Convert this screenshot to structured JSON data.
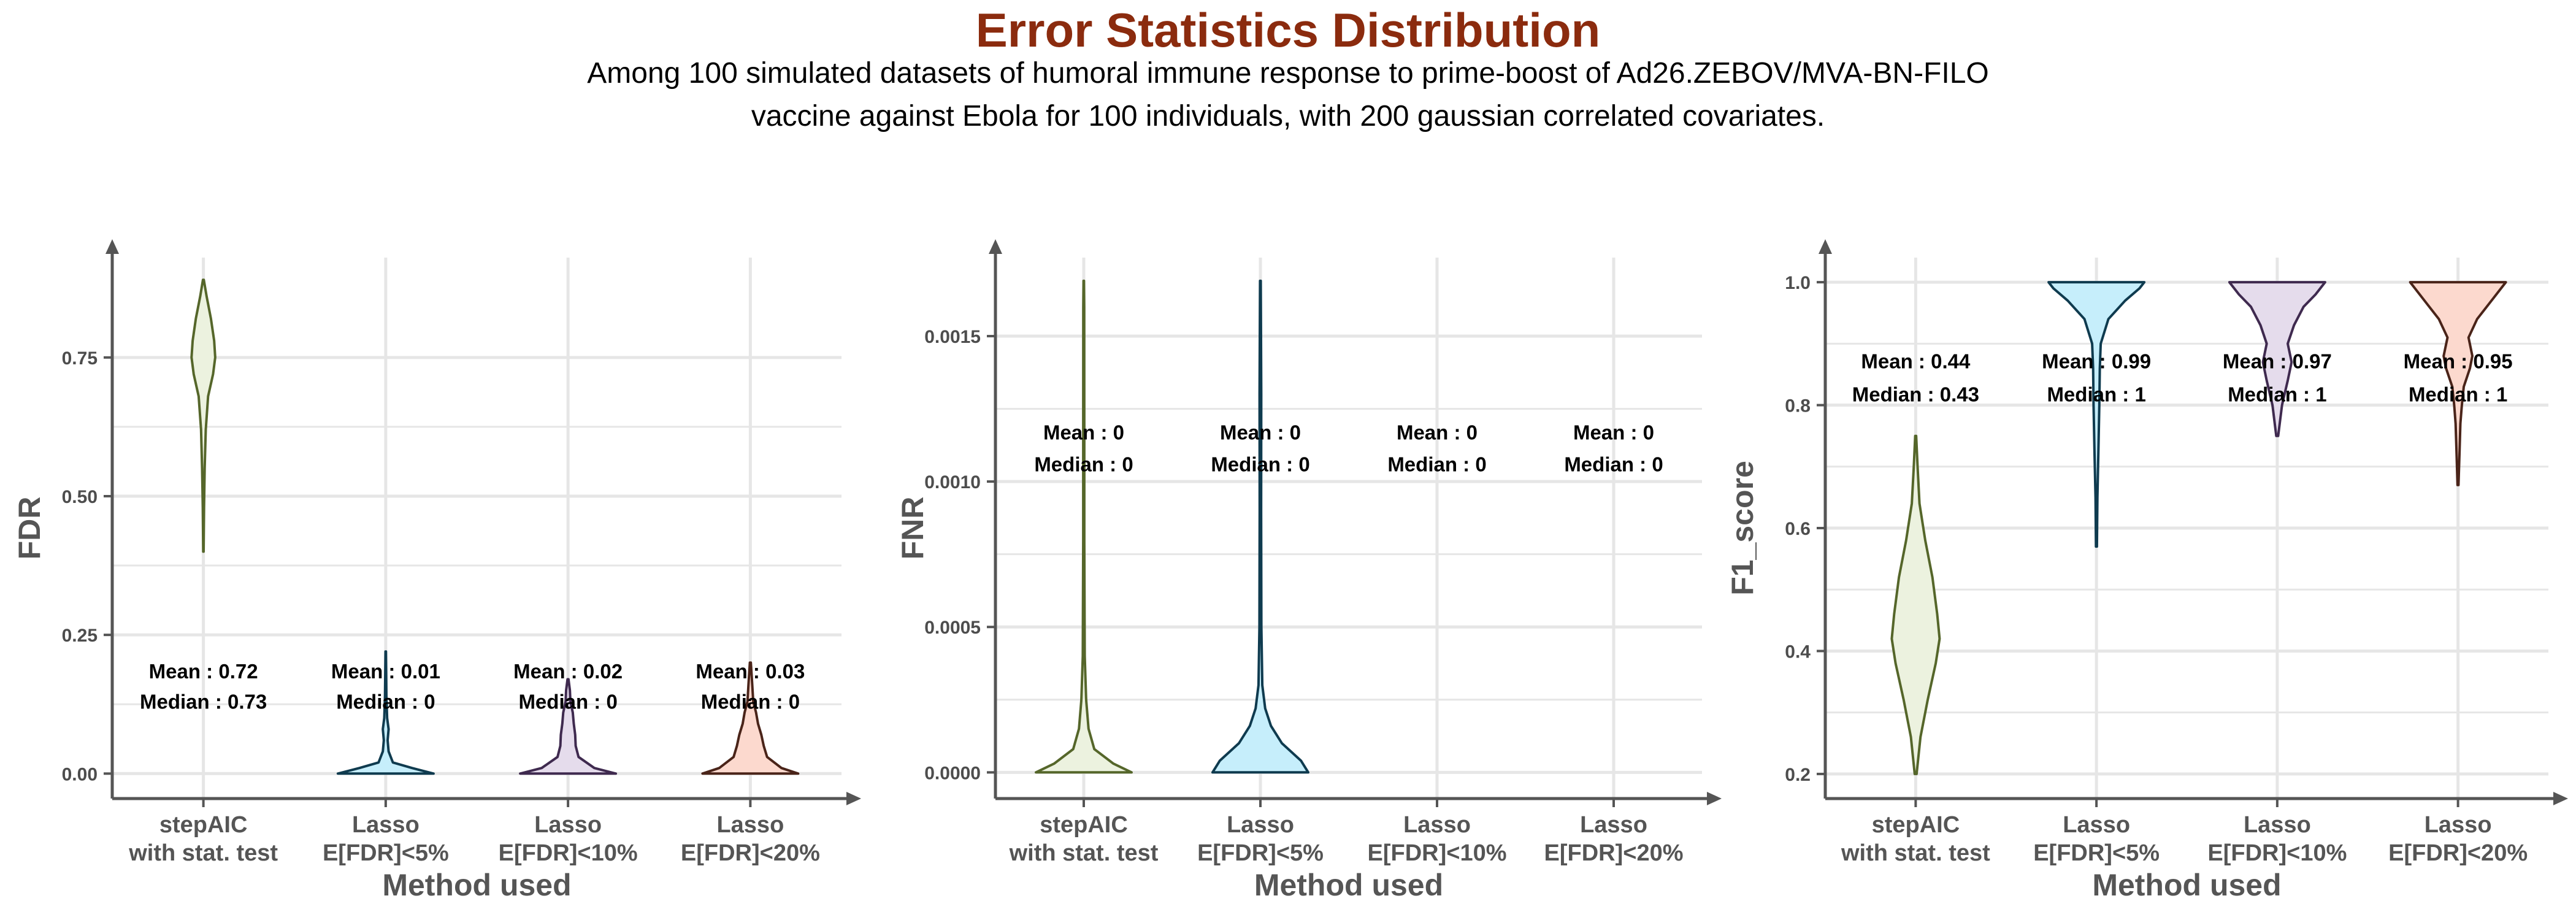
{
  "title": "Error Statistics Distribution",
  "subtitle_lines": [
    "Among 100 simulated datasets of humoral immune response to prime-boost of Ad26.ZEBOV/MVA-BN-FILO",
    "vaccine against Ebola for 100 individuals, with 200 gaussian correlated covariates."
  ],
  "colors": {
    "title": "#8b2b0e",
    "axis": "#555555",
    "grid": "#e6e6e6",
    "method_fills": [
      "#ecf2df",
      "#c6eefb",
      "#e5dcec",
      "#fcd9ce"
    ],
    "method_lines": [
      "#55662a",
      "#0f3b4f",
      "#3f2a4f",
      "#4a2419"
    ]
  },
  "chart_data": [
    {
      "type": "violin",
      "xlabel": "Method used",
      "ylabel": "FDR",
      "categories": [
        "stepAIC\nwith stat. test",
        "Lasso\nE[FDR]<5%",
        "Lasso\nE[FDR]<10%",
        "Lasso\nE[FDR]<20%"
      ],
      "ylim": [
        -0.045,
        0.93
      ],
      "yticks": [
        0.0,
        0.25,
        0.5,
        0.75
      ],
      "ytick_labels": [
        "0.00",
        "0.25",
        "0.50",
        "0.75"
      ],
      "grid": true,
      "annotation_y": [
        0.185,
        0.13
      ],
      "series": [
        {
          "mean_label": "Mean : 0.72",
          "median_label": "Median : 0.73",
          "density": [
            [
              0.4,
              0.01
            ],
            [
              0.48,
              0.03
            ],
            [
              0.55,
              0.06
            ],
            [
              0.62,
              0.11
            ],
            [
              0.68,
              0.22
            ],
            [
              0.72,
              0.45
            ],
            [
              0.75,
              0.55
            ],
            [
              0.78,
              0.5
            ],
            [
              0.82,
              0.35
            ],
            [
              0.86,
              0.15
            ],
            [
              0.89,
              0.02
            ]
          ]
        },
        {
          "mean_label": "Mean : 0.01",
          "median_label": "Median : 0",
          "density": [
            [
              0.0,
              1.0
            ],
            [
              0.01,
              0.55
            ],
            [
              0.02,
              0.15
            ],
            [
              0.04,
              0.06
            ],
            [
              0.06,
              0.04
            ],
            [
              0.08,
              0.06
            ],
            [
              0.1,
              0.03
            ],
            [
              0.14,
              0.015
            ],
            [
              0.18,
              0.01
            ],
            [
              0.22,
              0.005
            ]
          ]
        },
        {
          "mean_label": "Mean : 0.02",
          "median_label": "Median : 0",
          "density": [
            [
              0.0,
              1.0
            ],
            [
              0.01,
              0.55
            ],
            [
              0.03,
              0.22
            ],
            [
              0.05,
              0.16
            ],
            [
              0.07,
              0.15
            ],
            [
              0.09,
              0.12
            ],
            [
              0.11,
              0.1
            ],
            [
              0.13,
              0.05
            ],
            [
              0.15,
              0.04
            ],
            [
              0.17,
              0.01
            ]
          ]
        },
        {
          "mean_label": "Mean : 0.03",
          "median_label": "Median : 0",
          "density": [
            [
              0.0,
              1.0
            ],
            [
              0.01,
              0.65
            ],
            [
              0.03,
              0.35
            ],
            [
              0.05,
              0.28
            ],
            [
              0.07,
              0.23
            ],
            [
              0.09,
              0.16
            ],
            [
              0.11,
              0.12
            ],
            [
              0.13,
              0.06
            ],
            [
              0.16,
              0.04
            ],
            [
              0.2,
              0.01
            ]
          ]
        }
      ]
    },
    {
      "type": "violin",
      "xlabel": "Method used",
      "ylabel": "FNR",
      "categories": [
        "stepAIC\nwith stat. test",
        "Lasso\nE[FDR]<5%",
        "Lasso\nE[FDR]<10%",
        "Lasso\nE[FDR]<20%"
      ],
      "ylim": [
        -9e-05,
        0.00177
      ],
      "yticks": [
        0.0,
        0.0005,
        0.001,
        0.0015
      ],
      "ytick_labels": [
        "0.0000",
        "0.0005",
        "0.0010",
        "0.0015"
      ],
      "grid": true,
      "annotation_y": [
        0.00117,
        0.00106
      ],
      "series": [
        {
          "mean_label": "Mean : 0",
          "median_label": "Median : 0",
          "density": [
            [
              0.0,
              1.0
            ],
            [
              3e-05,
              0.62
            ],
            [
              8e-05,
              0.22
            ],
            [
              0.00015,
              0.1
            ],
            [
              0.00025,
              0.05
            ],
            [
              0.0004,
              0.02
            ],
            [
              0.0008,
              0.012
            ],
            [
              0.0012,
              0.012
            ],
            [
              0.0016,
              0.01
            ],
            [
              0.00169,
              0.005
            ]
          ]
        },
        {
          "mean_label": "Mean : 0",
          "median_label": "Median : 0",
          "density": [
            [
              0.0,
              1.0
            ],
            [
              4e-05,
              0.85
            ],
            [
              0.0001,
              0.45
            ],
            [
              0.00016,
              0.22
            ],
            [
              0.00022,
              0.1
            ],
            [
              0.0003,
              0.04
            ],
            [
              0.0005,
              0.02
            ],
            [
              0.0009,
              0.015
            ],
            [
              0.0013,
              0.018
            ],
            [
              0.00169,
              0.008
            ]
          ]
        },
        {
          "mean_label": "Mean : 0",
          "median_label": "Median : 0",
          "density": []
        },
        {
          "mean_label": "Mean : 0",
          "median_label": "Median : 0",
          "density": []
        }
      ]
    },
    {
      "type": "violin",
      "xlabel": "Method used",
      "ylabel": "F1_score",
      "categories": [
        "stepAIC\nwith stat. test",
        "Lasso\nE[FDR]<5%",
        "Lasso\nE[FDR]<10%",
        "Lasso\nE[FDR]<20%"
      ],
      "ylim": [
        0.16,
        1.04
      ],
      "yticks": [
        0.2,
        0.4,
        0.6,
        0.8,
        1.0
      ],
      "ytick_labels": [
        "0.2",
        "0.4",
        "0.6",
        "0.8",
        "1.0"
      ],
      "grid": true,
      "annotation_y": [
        0.872,
        0.818
      ],
      "series": [
        {
          "mean_label": "Mean : 0.44",
          "median_label": "Median : 0.43",
          "density": [
            [
              0.2,
              0.02
            ],
            [
              0.26,
              0.1
            ],
            [
              0.32,
              0.25
            ],
            [
              0.38,
              0.42
            ],
            [
              0.42,
              0.5
            ],
            [
              0.46,
              0.45
            ],
            [
              0.52,
              0.35
            ],
            [
              0.58,
              0.2
            ],
            [
              0.64,
              0.08
            ],
            [
              0.7,
              0.04
            ],
            [
              0.75,
              0.01
            ]
          ]
        },
        {
          "mean_label": "Mean : 0.99",
          "median_label": "Median : 1",
          "density": [
            [
              0.57,
              0.01
            ],
            [
              0.65,
              0.02
            ],
            [
              0.72,
              0.04
            ],
            [
              0.8,
              0.06
            ],
            [
              0.86,
              0.07
            ],
            [
              0.9,
              0.09
            ],
            [
              0.94,
              0.25
            ],
            [
              0.97,
              0.6
            ],
            [
              0.99,
              0.9
            ],
            [
              1.0,
              1.0
            ]
          ]
        },
        {
          "mean_label": "Mean : 0.97",
          "median_label": "Median : 1",
          "density": [
            [
              0.75,
              0.02
            ],
            [
              0.8,
              0.1
            ],
            [
              0.84,
              0.22
            ],
            [
              0.87,
              0.3
            ],
            [
              0.9,
              0.22
            ],
            [
              0.93,
              0.35
            ],
            [
              0.96,
              0.55
            ],
            [
              0.98,
              0.8
            ],
            [
              1.0,
              1.0
            ]
          ]
        },
        {
          "mean_label": "Mean : 0.95",
          "median_label": "Median : 1",
          "density": [
            [
              0.67,
              0.01
            ],
            [
              0.72,
              0.03
            ],
            [
              0.77,
              0.05
            ],
            [
              0.8,
              0.08
            ],
            [
              0.83,
              0.12
            ],
            [
              0.86,
              0.25
            ],
            [
              0.88,
              0.3
            ],
            [
              0.91,
              0.22
            ],
            [
              0.94,
              0.4
            ],
            [
              0.97,
              0.7
            ],
            [
              1.0,
              1.0
            ]
          ]
        }
      ]
    }
  ]
}
